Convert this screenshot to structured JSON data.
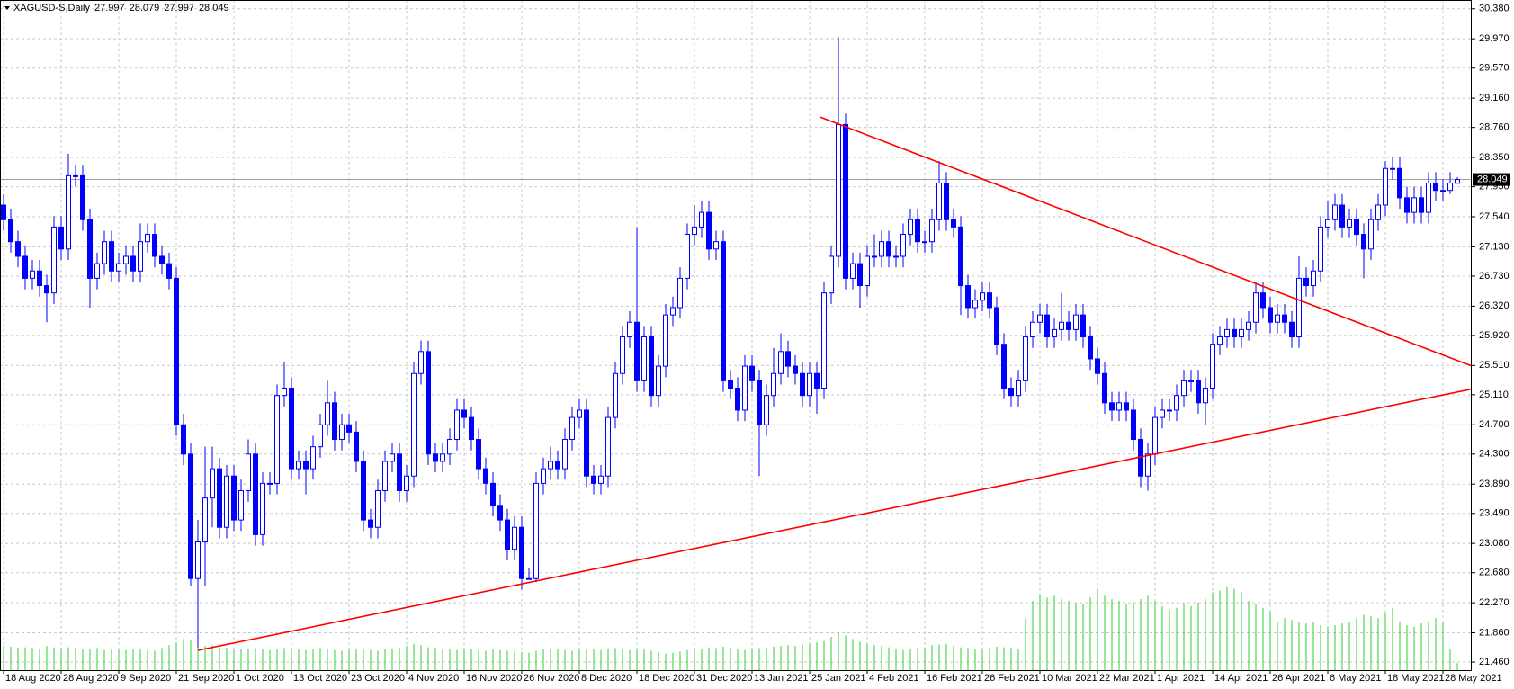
{
  "chart_data": {
    "type": "candlestick",
    "symbol": "XAGUSD-S,Daily",
    "categories": [
      "18 Aug 2020",
      null,
      null,
      null,
      null,
      null,
      null,
      null,
      "28 Aug 2020",
      null,
      null,
      null,
      null,
      null,
      null,
      null,
      "9 Sep 2020",
      null,
      null,
      null,
      null,
      null,
      null,
      null,
      "21 Sep 2020",
      null,
      null,
      null,
      null,
      null,
      null,
      null,
      "1 Oct 2020",
      null,
      null,
      null,
      null,
      null,
      null,
      null,
      "13 Oct 2020",
      null,
      null,
      null,
      null,
      null,
      null,
      null,
      "23 Oct 2020",
      null,
      null,
      null,
      null,
      null,
      null,
      null,
      "4 Nov 2020",
      null,
      null,
      null,
      null,
      null,
      null,
      null,
      "16 Nov 2020",
      null,
      null,
      null,
      null,
      null,
      null,
      null,
      "26 Nov 2020",
      null,
      null,
      null,
      null,
      null,
      null,
      null,
      "8 Dec 2020",
      null,
      null,
      null,
      null,
      null,
      null,
      null,
      "18 Dec 2020",
      null,
      null,
      null,
      null,
      null,
      null,
      null,
      "31 Dec 2020",
      null,
      null,
      null,
      null,
      null,
      null,
      null,
      "13 Jan 2021",
      null,
      null,
      null,
      null,
      null,
      null,
      null,
      "25 Jan 2021",
      null,
      null,
      null,
      null,
      null,
      null,
      null,
      "4 Feb 2021",
      null,
      null,
      null,
      null,
      null,
      null,
      null,
      "16 Feb 2021",
      null,
      null,
      null,
      null,
      null,
      null,
      null,
      "26 Feb 2021",
      null,
      null,
      null,
      null,
      null,
      null,
      null,
      "10 Mar 2021",
      null,
      null,
      null,
      null,
      null,
      null,
      null,
      "22 Mar 2021",
      null,
      null,
      null,
      null,
      null,
      null,
      null,
      "1 Apr 2021",
      null,
      null,
      null,
      null,
      null,
      null,
      null,
      "14 Apr 2021",
      null,
      null,
      null,
      null,
      null,
      null,
      null,
      "26 Apr 2021",
      null,
      null,
      null,
      null,
      null,
      null,
      null,
      "6 May 2021",
      null,
      null,
      null,
      null,
      null,
      null,
      null,
      "18 May 2021",
      null,
      null,
      null,
      null,
      null,
      null,
      null,
      "28 May 2021",
      null,
      null
    ],
    "open": [
      27.7,
      27.5,
      27.2,
      27.0,
      26.7,
      26.8,
      26.6,
      26.5,
      27.4,
      27.1,
      28.1,
      28.1,
      27.5,
      26.7,
      26.9,
      27.2,
      26.8,
      26.9,
      27.0,
      26.8,
      27.2,
      27.3,
      27.0,
      26.9,
      26.7,
      24.7,
      24.3,
      22.6,
      23.1,
      23.7,
      24.1,
      23.3,
      24.0,
      23.4,
      23.8,
      24.3,
      23.2,
      23.9,
      23.9,
      25.1,
      25.2,
      24.1,
      24.2,
      24.1,
      24.4,
      24.7,
      25.0,
      24.5,
      24.7,
      24.6,
      24.2,
      23.4,
      23.3,
      23.8,
      24.2,
      24.3,
      23.8,
      24.0,
      25.4,
      25.7,
      24.3,
      24.2,
      24.3,
      24.5,
      24.9,
      24.8,
      24.5,
      24.1,
      23.9,
      23.6,
      23.4,
      23.0,
      23.3,
      22.6,
      22.6,
      23.9,
      24.1,
      24.2,
      24.1,
      24.5,
      24.8,
      24.9,
      24.0,
      23.9,
      24.0,
      24.8,
      25.4,
      25.9,
      26.1,
      25.3,
      25.9,
      25.1,
      25.5,
      26.2,
      26.3,
      26.7,
      27.3,
      27.4,
      27.6,
      27.1,
      27.2,
      25.3,
      25.2,
      24.9,
      25.5,
      25.3,
      24.7,
      25.1,
      25.4,
      25.7,
      25.5,
      25.4,
      25.1,
      25.4,
      25.2,
      26.5,
      27.0,
      28.8,
      26.7,
      26.9,
      26.6,
      27.0,
      27.0,
      27.2,
      27.0,
      27.0,
      27.3,
      27.5,
      27.2,
      27.2,
      27.5,
      28.0,
      27.5,
      27.4,
      26.6,
      26.3,
      26.4,
      26.5,
      26.3,
      25.8,
      25.2,
      25.1,
      25.3,
      25.9,
      26.1,
      26.2,
      25.9,
      26.0,
      26.1,
      26.0,
      26.2,
      25.9,
      25.6,
      25.4,
      25.0,
      24.9,
      25.0,
      24.9,
      24.5,
      24.0,
      24.3,
      24.8,
      24.9,
      24.9,
      25.1,
      25.3,
      25.3,
      25.0,
      25.2,
      25.8,
      25.9,
      26.0,
      25.9,
      26.0,
      26.1,
      26.5,
      26.3,
      26.1,
      26.2,
      26.1,
      25.9,
      26.7,
      26.6,
      26.8,
      27.4,
      27.5,
      27.7,
      27.4,
      27.5,
      27.3,
      27.1,
      27.5,
      27.7,
      28.2,
      28.2,
      27.8,
      27.6,
      27.8,
      27.6,
      28.0,
      27.9,
      27.9,
      27.997
    ],
    "high": [
      27.85,
      27.65,
      27.35,
      27.15,
      26.95,
      26.95,
      26.75,
      27.55,
      27.55,
      28.4,
      28.25,
      28.25,
      27.65,
      27.05,
      27.35,
      27.35,
      27.05,
      27.15,
      27.15,
      27.45,
      27.45,
      27.45,
      27.15,
      27.05,
      26.85,
      24.85,
      24.45,
      23.4,
      24.4,
      24.4,
      24.25,
      24.15,
      24.15,
      23.95,
      24.5,
      24.45,
      24.05,
      24.05,
      25.25,
      25.55,
      25.35,
      24.35,
      24.35,
      24.55,
      24.85,
      25.3,
      25.15,
      24.85,
      24.85,
      24.75,
      24.35,
      23.55,
      23.95,
      24.35,
      24.45,
      24.45,
      24.15,
      25.55,
      25.85,
      25.85,
      24.45,
      24.45,
      24.65,
      25.05,
      25.05,
      24.95,
      24.65,
      24.25,
      24.05,
      23.75,
      23.55,
      23.45,
      23.45,
      22.75,
      24.05,
      24.25,
      24.4,
      24.35,
      24.65,
      24.95,
      25.05,
      25.05,
      24.15,
      24.15,
      24.95,
      25.55,
      26.05,
      26.25,
      27.4,
      26.05,
      26.05,
      25.65,
      26.35,
      26.45,
      26.85,
      27.45,
      27.7,
      27.75,
      27.75,
      27.35,
      27.35,
      25.45,
      25.35,
      25.65,
      25.65,
      25.45,
      25.25,
      25.75,
      25.95,
      25.85,
      25.65,
      25.55,
      25.55,
      25.55,
      26.65,
      27.15,
      29.99,
      28.95,
      27.05,
      27.05,
      27.15,
      27.3,
      27.35,
      27.35,
      27.15,
      27.45,
      27.65,
      27.65,
      27.35,
      27.65,
      28.3,
      28.15,
      27.65,
      27.55,
      26.75,
      26.55,
      26.65,
      26.65,
      26.45,
      25.95,
      25.35,
      25.45,
      26.05,
      26.25,
      26.35,
      26.35,
      26.15,
      26.5,
      26.25,
      26.35,
      26.35,
      26.05,
      25.75,
      25.55,
      25.15,
      25.15,
      25.15,
      25.05,
      24.65,
      24.45,
      24.95,
      25.05,
      25.05,
      25.25,
      25.45,
      25.45,
      25.45,
      25.35,
      25.95,
      26.05,
      26.15,
      26.15,
      26.15,
      26.25,
      26.65,
      26.65,
      26.45,
      26.35,
      26.35,
      26.25,
      27.0,
      26.85,
      26.95,
      27.55,
      27.75,
      27.85,
      27.85,
      27.65,
      27.65,
      27.45,
      27.65,
      27.85,
      28.3,
      28.35,
      28.35,
      27.95,
      27.95,
      27.95,
      28.15,
      28.15,
      28.05,
      28.15,
      28.079
    ],
    "low": [
      27.35,
      27.05,
      26.85,
      26.55,
      26.55,
      26.45,
      26.1,
      26.35,
      26.95,
      26.95,
      27.95,
      27.35,
      26.3,
      26.55,
      26.75,
      26.65,
      26.65,
      26.75,
      26.65,
      26.65,
      27.05,
      26.85,
      26.75,
      26.55,
      24.55,
      24.15,
      22.5,
      21.66,
      22.5,
      23.3,
      23.15,
      23.15,
      23.25,
      23.25,
      23.65,
      23.05,
      23.05,
      23.75,
      23.75,
      24.95,
      23.95,
      23.95,
      23.75,
      23.95,
      24.25,
      24.55,
      24.35,
      24.35,
      24.45,
      24.05,
      23.25,
      23.15,
      23.15,
      23.65,
      24.05,
      23.65,
      23.65,
      23.85,
      25.25,
      24.15,
      24.05,
      24.05,
      24.15,
      24.35,
      24.65,
      24.35,
      23.95,
      23.75,
      23.45,
      23.25,
      22.85,
      22.85,
      22.45,
      22.6,
      22.55,
      23.75,
      23.95,
      23.95,
      23.95,
      24.35,
      24.65,
      23.85,
      23.75,
      23.75,
      23.85,
      24.65,
      25.25,
      25.75,
      25.15,
      25.15,
      24.95,
      24.95,
      25.35,
      26.05,
      26.15,
      26.55,
      27.15,
      27.25,
      26.95,
      26.95,
      25.15,
      25.05,
      24.75,
      24.75,
      25.15,
      24.0,
      24.55,
      24.95,
      25.25,
      25.35,
      25.25,
      24.95,
      24.95,
      24.85,
      25.05,
      26.35,
      26.85,
      26.55,
      26.55,
      26.3,
      26.45,
      26.85,
      26.85,
      26.85,
      26.85,
      26.85,
      27.15,
      27.05,
      27.05,
      27.05,
      27.35,
      27.35,
      27.25,
      26.2,
      26.15,
      26.15,
      26.25,
      26.15,
      25.65,
      25.05,
      24.95,
      24.95,
      25.15,
      25.75,
      25.95,
      25.75,
      25.75,
      25.85,
      25.85,
      25.85,
      25.75,
      25.45,
      25.25,
      24.85,
      24.75,
      24.75,
      24.75,
      24.35,
      23.85,
      23.8,
      24.15,
      24.65,
      24.75,
      24.75,
      24.95,
      25.15,
      24.85,
      24.7,
      25.05,
      25.65,
      25.75,
      25.75,
      25.75,
      25.85,
      25.95,
      26.15,
      25.95,
      25.95,
      25.95,
      25.75,
      25.75,
      26.45,
      26.45,
      26.65,
      27.25,
      27.35,
      27.25,
      27.25,
      27.15,
      26.7,
      26.95,
      27.35,
      27.55,
      28.05,
      27.65,
      27.45,
      27.45,
      27.45,
      27.45,
      27.75,
      27.75,
      27.85,
      27.997
    ],
    "close": [
      27.5,
      27.2,
      27.0,
      26.7,
      26.8,
      26.6,
      26.5,
      27.4,
      27.1,
      28.1,
      28.1,
      27.5,
      26.7,
      26.9,
      27.2,
      26.8,
      26.9,
      27.0,
      26.8,
      27.2,
      27.3,
      27.0,
      26.9,
      26.7,
      24.7,
      24.3,
      22.6,
      23.1,
      23.7,
      24.1,
      23.3,
      24.0,
      23.4,
      23.8,
      24.3,
      23.2,
      23.9,
      23.9,
      25.1,
      25.2,
      24.1,
      24.2,
      24.1,
      24.4,
      24.7,
      25.0,
      24.5,
      24.7,
      24.6,
      24.2,
      23.4,
      23.3,
      23.8,
      24.2,
      24.3,
      23.8,
      24.0,
      25.4,
      25.7,
      24.3,
      24.2,
      24.3,
      24.5,
      24.9,
      24.8,
      24.5,
      24.1,
      23.9,
      23.6,
      23.4,
      23.0,
      23.3,
      22.6,
      22.6,
      23.9,
      24.1,
      24.2,
      24.1,
      24.5,
      24.8,
      24.9,
      24.0,
      23.9,
      24.0,
      24.8,
      25.4,
      25.9,
      26.1,
      25.3,
      25.9,
      25.1,
      25.5,
      26.2,
      26.3,
      26.7,
      27.3,
      27.4,
      27.6,
      27.1,
      27.2,
      25.3,
      25.2,
      24.9,
      25.5,
      25.3,
      24.7,
      25.1,
      25.4,
      25.7,
      25.5,
      25.4,
      25.1,
      25.4,
      25.2,
      26.5,
      27.0,
      28.8,
      26.7,
      26.9,
      26.6,
      27.0,
      27.0,
      27.2,
      27.0,
      27.0,
      27.3,
      27.5,
      27.2,
      27.2,
      27.5,
      28.0,
      27.5,
      27.4,
      26.6,
      26.3,
      26.4,
      26.5,
      26.3,
      25.8,
      25.2,
      25.1,
      25.3,
      25.9,
      26.1,
      26.2,
      25.9,
      26.0,
      26.1,
      26.0,
      26.2,
      25.9,
      25.6,
      25.4,
      25.0,
      24.9,
      25.0,
      24.9,
      24.5,
      24.0,
      24.3,
      24.8,
      24.9,
      24.9,
      25.1,
      25.3,
      25.3,
      25.0,
      25.2,
      25.8,
      25.9,
      26.0,
      25.9,
      26.0,
      26.1,
      26.5,
      26.3,
      26.1,
      26.2,
      26.1,
      25.9,
      26.7,
      26.6,
      26.8,
      27.4,
      27.5,
      27.7,
      27.4,
      27.5,
      27.3,
      27.1,
      27.5,
      27.7,
      28.2,
      28.2,
      27.8,
      27.6,
      27.8,
      27.6,
      28.0,
      27.9,
      27.9,
      28.0,
      28.049
    ],
    "volume": [
      70,
      68,
      65,
      66,
      64,
      62,
      70,
      66,
      63,
      66,
      65,
      62,
      60,
      64,
      58,
      62,
      60,
      58,
      61,
      60,
      58,
      56,
      64,
      72,
      80,
      90,
      85,
      78,
      70,
      72,
      66,
      64,
      62,
      60,
      62,
      64,
      60,
      58,
      62,
      64,
      62,
      60,
      58,
      62,
      64,
      60,
      58,
      56,
      60,
      62,
      60,
      58,
      56,
      60,
      62,
      66,
      70,
      76,
      72,
      66,
      64,
      62,
      60,
      58,
      62,
      60,
      58,
      56,
      60,
      58,
      56,
      54,
      52,
      50,
      56,
      60,
      62,
      60,
      58,
      56,
      60,
      62,
      60,
      58,
      62,
      64,
      60,
      58,
      62,
      60,
      56,
      52,
      48,
      50,
      54,
      58,
      60,
      62,
      66,
      64,
      68,
      66,
      60,
      58,
      62,
      64,
      66,
      68,
      70,
      72,
      70,
      74,
      76,
      80,
      84,
      96,
      110,
      100,
      90,
      82,
      76,
      72,
      70,
      66,
      62,
      58,
      60,
      64,
      66,
      72,
      74,
      76,
      70,
      66,
      64,
      62,
      62,
      64,
      68,
      66,
      64,
      62,
      150,
      200,
      220,
      210,
      215,
      205,
      200,
      195,
      190,
      210,
      235,
      215,
      205,
      200,
      190,
      195,
      205,
      215,
      200,
      185,
      175,
      180,
      190,
      185,
      195,
      205,
      225,
      230,
      240,
      235,
      225,
      200,
      190,
      180,
      170,
      140,
      150,
      145,
      140,
      135,
      140,
      130,
      125,
      130,
      135,
      140,
      150,
      160,
      155,
      150,
      165,
      180,
      140,
      130,
      125,
      135,
      140,
      150,
      140,
      60,
      20
    ],
    "vlim": [
      0,
      260
    ],
    "ylim": [
      21.35,
      30.5
    ],
    "yticks": [
      {
        "value": 30.38,
        "label": "30.380"
      },
      {
        "value": 29.97,
        "label": "29.970"
      },
      {
        "value": 29.57,
        "label": "29.570"
      },
      {
        "value": 29.16,
        "label": "29.160"
      },
      {
        "value": 28.76,
        "label": "28.760"
      },
      {
        "value": 28.35,
        "label": "28.350"
      },
      {
        "value": 27.95,
        "label": "27.950"
      },
      {
        "value": 27.54,
        "label": "27.540"
      },
      {
        "value": 27.13,
        "label": "27.130"
      },
      {
        "value": 26.73,
        "label": "26.730"
      },
      {
        "value": 26.32,
        "label": "26.320"
      },
      {
        "value": 25.92,
        "label": "25.920"
      },
      {
        "value": 25.51,
        "label": "25.510"
      },
      {
        "value": 25.11,
        "label": "25.110"
      },
      {
        "value": 24.7,
        "label": "24.700"
      },
      {
        "value": 24.3,
        "label": "24.300"
      },
      {
        "value": 23.89,
        "label": "23.890"
      },
      {
        "value": 23.49,
        "label": "23.490"
      },
      {
        "value": 23.08,
        "label": "23.080"
      },
      {
        "value": 22.68,
        "label": "22.680"
      },
      {
        "value": 22.27,
        "label": "22.270"
      },
      {
        "value": 21.86,
        "label": "21.860"
      },
      {
        "value": 21.46,
        "label": "21.460"
      }
    ],
    "grid": true,
    "up_color": "#ffffff",
    "down_color": "#0000ff",
    "wick_color": "#0000ff",
    "volume_color": "#32cd32",
    "trendlines": [
      {
        "color": "#ff0000",
        "x": [
          27,
          204.6
        ],
        "y": [
          21.62,
          25.2
        ]
      },
      {
        "color": "#ff0000",
        "x": [
          113.5,
          204.6
        ],
        "y": [
          28.9,
          25.48
        ]
      }
    ]
  }
}
